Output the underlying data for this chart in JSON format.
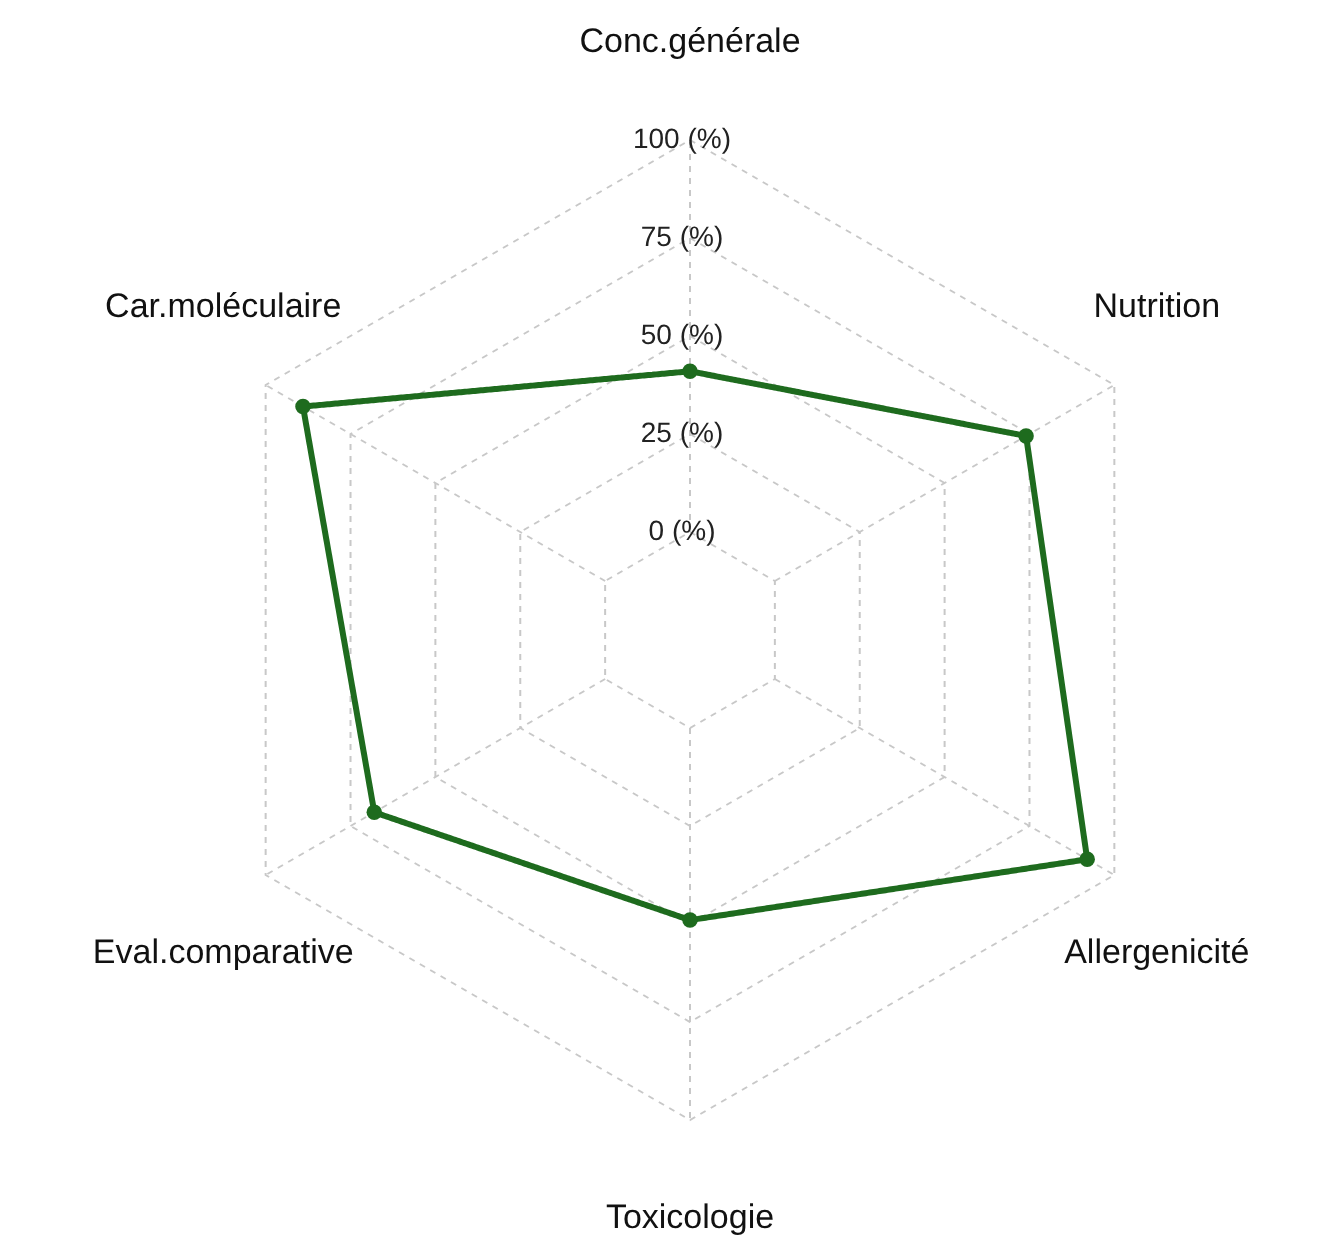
{
  "chart_data": {
    "type": "radar",
    "categories": [
      "Conc.générale",
      "Nutrition",
      "Allergenicité",
      "Toxicologie",
      "Eval.comparative",
      "Car.moléculaire"
    ],
    "series": [
      {
        "color": "#1e6b1e",
        "values": [
          41,
          74,
          92,
          49,
          68,
          89
        ]
      }
    ],
    "ylim": [
      -25,
      100
    ],
    "yticks": [
      {
        "value": 0,
        "label": "0 (%)"
      },
      {
        "value": 25,
        "label": "25 (%)"
      },
      {
        "value": 50,
        "label": "50 (%)"
      },
      {
        "value": 75,
        "label": "75 (%)"
      },
      {
        "value": 100,
        "label": "100 (%)"
      }
    ],
    "grid": true,
    "marker": "circle",
    "line_style": "solid"
  }
}
